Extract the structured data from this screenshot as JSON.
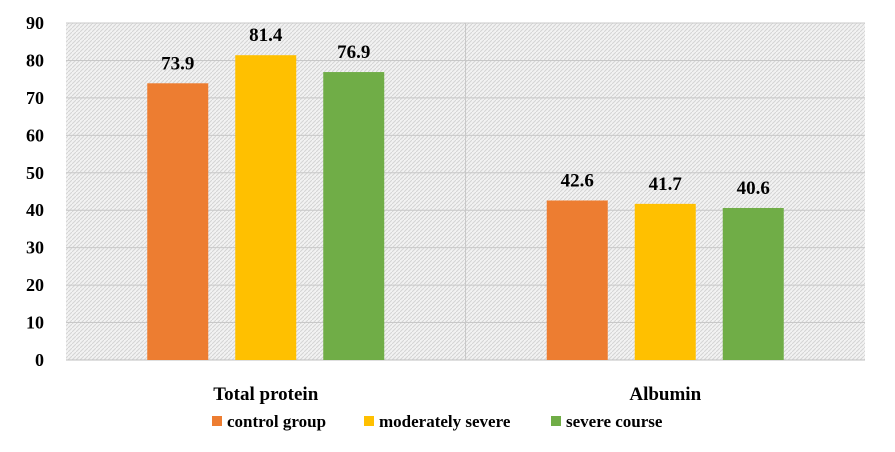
{
  "chart_data": {
    "type": "bar",
    "categories": [
      "Total protein",
      "Albumin"
    ],
    "series": [
      {
        "name": "control group",
        "values": [
          73.9,
          42.6
        ],
        "color": "#ED7D31"
      },
      {
        "name": "moderately severe",
        "values": [
          81.4,
          41.7
        ],
        "color": "#FFC000"
      },
      {
        "name": "severe course",
        "values": [
          76.9,
          40.6
        ],
        "color": "#70AD47"
      }
    ],
    "data_labels": [
      [
        "73.9",
        "42.6"
      ],
      [
        "81.4",
        "41.7"
      ],
      [
        "76.9",
        "40.6"
      ]
    ],
    "ylim": [
      0,
      90
    ],
    "yticks": [
      0,
      10,
      20,
      30,
      40,
      50,
      60,
      70,
      80,
      90
    ],
    "grid": true,
    "legend_position": "bottom",
    "plot_background": "hatched light gray"
  }
}
